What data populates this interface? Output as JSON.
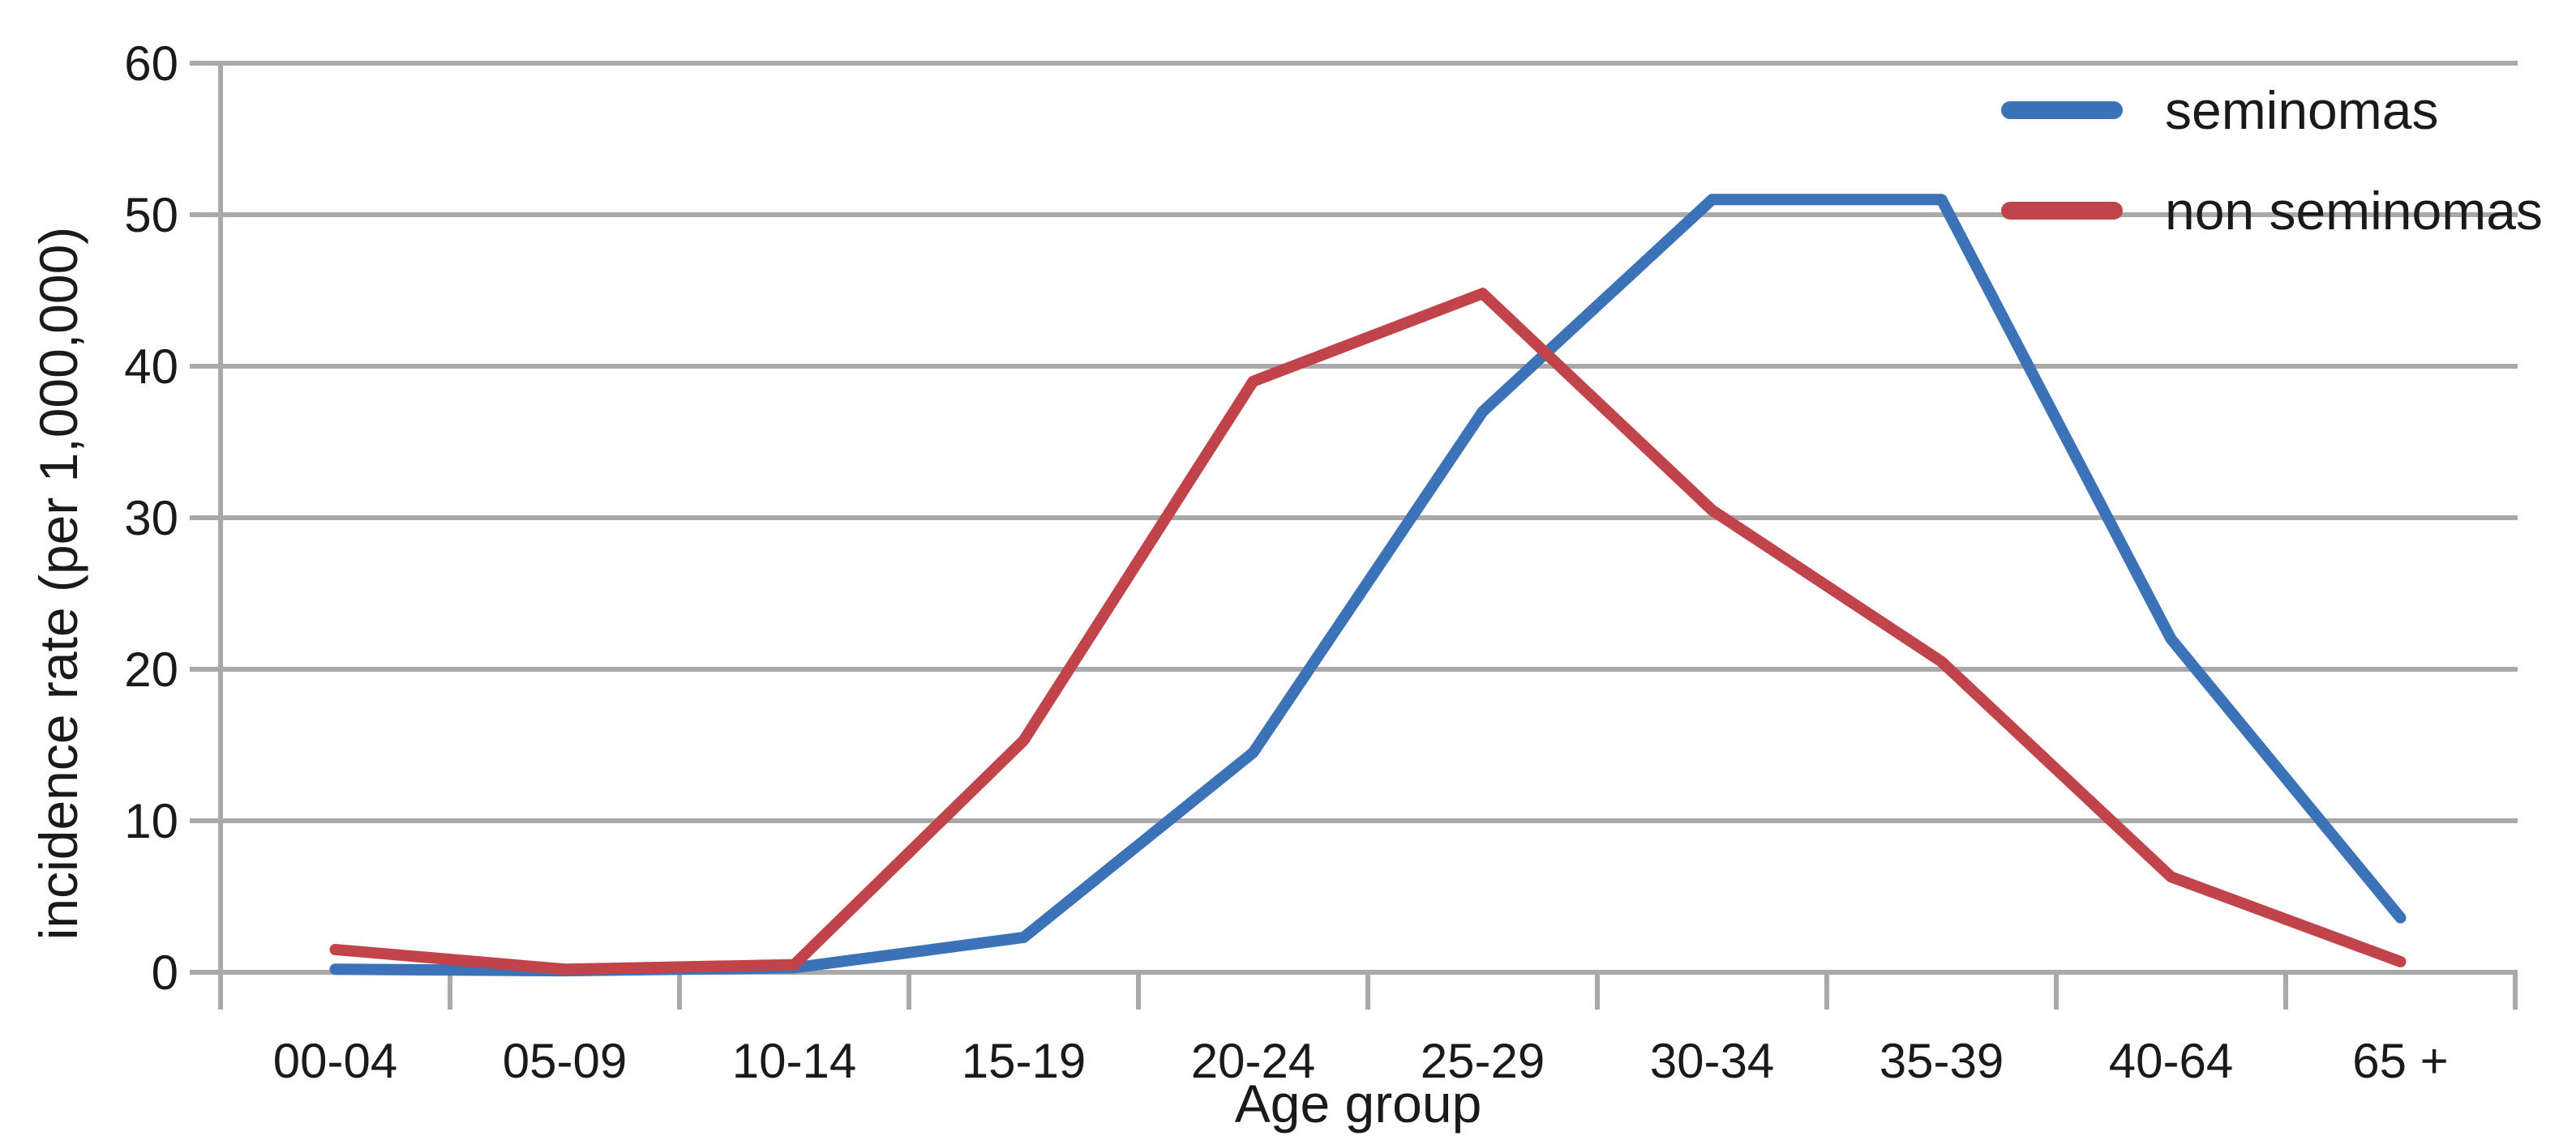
{
  "chart_data": {
    "type": "line",
    "title": "",
    "xlabel": "Age group",
    "ylabel": "incidence rate (per 1,000,000)",
    "categories": [
      "00-04",
      "05-09",
      "10-14",
      "15-19",
      "20-24",
      "25-29",
      "30-34",
      "35-39",
      "40-64",
      "65 +"
    ],
    "series": [
      {
        "name": "seminomas",
        "color": "#3b72b8",
        "values": [
          0.2,
          0.1,
          0.3,
          2.3,
          14.5,
          37,
          51,
          51,
          22,
          3.6
        ]
      },
      {
        "name": "non seminomas",
        "color": "#c0444a",
        "values": [
          1.5,
          0.2,
          0.5,
          15.3,
          39,
          44.8,
          30.5,
          20.5,
          6.3,
          0.7
        ]
      }
    ],
    "ylim": [
      0,
      60
    ],
    "yticks": [
      0,
      10,
      20,
      30,
      40,
      50,
      60
    ],
    "grid": true,
    "legend_position": "top-right"
  },
  "colors": {
    "grid": "#a9a9a9",
    "axis": "#a9a9a9",
    "text": "#1a1a1a",
    "background": "#ffffff"
  }
}
